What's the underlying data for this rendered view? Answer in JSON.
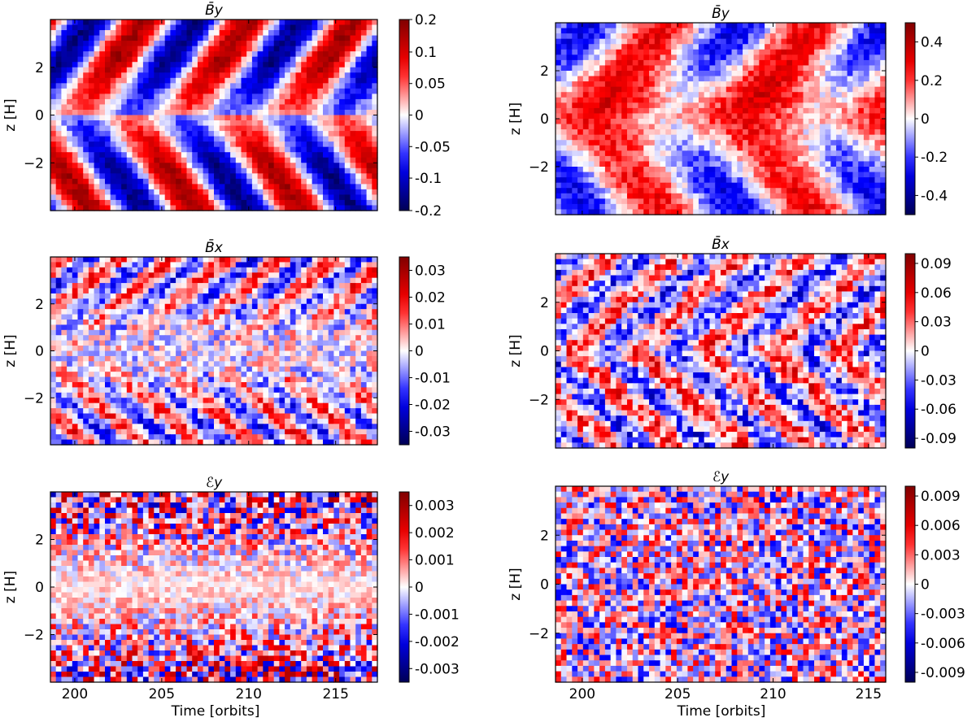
{
  "figure": {
    "xlabel": "Time [orbits]",
    "ylabel": "z  [H]"
  },
  "colors": {
    "neg_dark": "#000055",
    "neg": "#0000ff",
    "zero": "#ffffff",
    "pos": "#ff0000",
    "pos_dark": "#800000"
  },
  "chart_data": [
    {
      "type": "heatmap",
      "id": "tl",
      "title": "B̄y",
      "title_sub": "y",
      "xlabel": "",
      "ylabel": "z  [H]",
      "xlim": [
        198.6,
        217.4
      ],
      "ylim": [
        -4,
        4
      ],
      "xticks": [],
      "xtick_labels": [],
      "yticks": [
        -2,
        0,
        2
      ],
      "ytick_labels": [
        "−2",
        "0",
        "2"
      ],
      "colorbar": {
        "vmin": -0.2,
        "vmax": 0.2,
        "ticks": [
          -0.2,
          -0.1,
          -0.05,
          0,
          0.05,
          0.1,
          0.2
        ],
        "tick_labels": [
          "-0.2",
          "-0.1",
          "-0.05",
          "0",
          "0.05",
          "0.1",
          "0.2"
        ]
      },
      "pattern": "dynamo_flip"
    },
    {
      "type": "heatmap",
      "id": "tr",
      "title": "B̄y",
      "title_sub": "y",
      "xlabel": "",
      "ylabel": "z  [H]",
      "xlim": [
        198.6,
        215.9
      ],
      "ylim": [
        -4,
        4
      ],
      "xticks": [],
      "xtick_labels": [],
      "yticks": [
        -2,
        0,
        2
      ],
      "ytick_labels": [
        "−2",
        "0",
        "2"
      ],
      "colorbar": {
        "vmin": -0.5,
        "vmax": 0.5,
        "ticks": [
          -0.4,
          -0.2,
          0,
          0.2,
          0.4
        ],
        "tick_labels": [
          "-0.4",
          "-0.2",
          "0",
          "0.2",
          "0.4"
        ]
      },
      "pattern": "dynamo_pos"
    },
    {
      "type": "heatmap",
      "id": "ml",
      "title": "B̄x",
      "title_sub": "x",
      "xlabel": "",
      "ylabel": "z  [H]",
      "xlim": [
        198.6,
        217.4
      ],
      "ylim": [
        -4,
        4
      ],
      "xticks": [],
      "xtick_labels": [],
      "yticks": [
        -2,
        0,
        2
      ],
      "ytick_labels": [
        "−2",
        "0",
        "2"
      ],
      "colorbar": {
        "vmin": -0.035,
        "vmax": 0.035,
        "ticks": [
          -0.03,
          -0.02,
          -0.01,
          0,
          0.01,
          0.02,
          0.03
        ],
        "tick_labels": [
          "-0.03",
          "-0.02",
          "-0.01",
          "0",
          "0.01",
          "0.02",
          "0.03"
        ]
      },
      "pattern": "streaky"
    },
    {
      "type": "heatmap",
      "id": "mr",
      "title": "B̄x",
      "title_sub": "x",
      "xlabel": "",
      "ylabel": "z [H]",
      "xlim": [
        198.6,
        215.9
      ],
      "ylim": [
        -4,
        4
      ],
      "xticks": [],
      "xtick_labels": [],
      "yticks": [
        -2,
        0,
        2
      ],
      "ytick_labels": [
        "−2",
        "0",
        "2"
      ],
      "colorbar": {
        "vmin": -0.1,
        "vmax": 0.1,
        "ticks": [
          -0.09,
          -0.06,
          -0.03,
          0,
          0.03,
          0.06,
          0.09
        ],
        "tick_labels": [
          "-0.09",
          "-0.06",
          "-0.03",
          "0",
          "0.03",
          "0.06",
          "0.09"
        ]
      },
      "pattern": "streaky_mid"
    },
    {
      "type": "heatmap",
      "id": "bl",
      "title": "ℰy",
      "title_sub": "y",
      "xlabel": "Time [orbits]",
      "ylabel": "z  [H]",
      "xlim": [
        198.6,
        217.4
      ],
      "ylim": [
        -4,
        4
      ],
      "xticks": [
        200,
        205,
        210,
        215
      ],
      "xtick_labels": [
        "200",
        "205",
        "210",
        "215"
      ],
      "yticks": [
        -2,
        0,
        2
      ],
      "ytick_labels": [
        "−2",
        "0",
        "2"
      ],
      "colorbar": {
        "vmin": -0.0035,
        "vmax": 0.0035,
        "ticks": [
          -0.003,
          -0.002,
          -0.001,
          0,
          0.001,
          0.002,
          0.003
        ],
        "tick_labels": [
          "-0.003",
          "-0.002",
          "-0.001",
          "0",
          "0.001",
          "0.002",
          "0.003"
        ]
      },
      "pattern": "noisy_edges"
    },
    {
      "type": "heatmap",
      "id": "br",
      "title": "ℰy",
      "title_sub": "y",
      "xlabel": "Time [orbits]",
      "ylabel": "z [H]",
      "xlim": [
        198.6,
        215.9
      ],
      "ylim": [
        -4,
        4
      ],
      "xticks": [
        200,
        205,
        210,
        215
      ],
      "xtick_labels": [
        "200",
        "205",
        "210",
        "215"
      ],
      "yticks": [
        -2,
        0,
        2
      ],
      "ytick_labels": [
        "−2",
        "0",
        "2"
      ],
      "colorbar": {
        "vmin": -0.01,
        "vmax": 0.01,
        "ticks": [
          -0.009,
          -0.006,
          -0.003,
          0,
          0.003,
          0.006,
          0.009
        ],
        "tick_labels": [
          "-0.009",
          "-0.006",
          "-0.003",
          "0",
          "0.003",
          "0.006",
          "0.009"
        ]
      },
      "pattern": "noisy_uniform"
    }
  ]
}
